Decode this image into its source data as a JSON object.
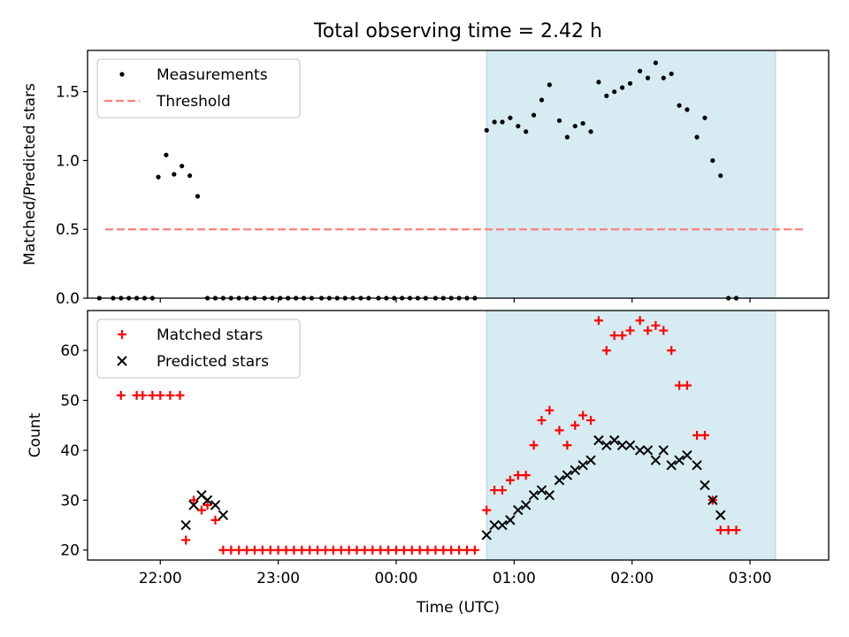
{
  "title": "Total observing time = 2.42 h",
  "colors": {
    "measurement": "#000000",
    "threshold": "#ff7f7f",
    "matched": "#ff0000",
    "predicted": "#000000",
    "span": "#add8e6"
  },
  "chart_data": [
    {
      "type": "scatter",
      "ylabel": "Matched/Predicted stars",
      "xlabel": "",
      "xlim": [
        "21:23",
        "03:40"
      ],
      "ylim": [
        0,
        1.8
      ],
      "xticks": [
        "22:00",
        "23:00",
        "00:00",
        "01:00",
        "02:00",
        "03:00"
      ],
      "yticks": [
        "0.0",
        "0.5",
        "1.0",
        "1.5"
      ],
      "highlight_span": [
        "00:46",
        "03:13"
      ],
      "legend": {
        "position": "top-left",
        "items": [
          {
            "label": "Measurements",
            "marker": "dot"
          },
          {
            "label": "Threshold",
            "marker": "dashed-line"
          }
        ]
      },
      "series": [
        {
          "name": "Measurements",
          "points": [
            [
              "21:29",
              0
            ],
            [
              "21:36",
              0
            ],
            [
              "21:40",
              0
            ],
            [
              "21:44",
              0
            ],
            [
              "21:48",
              0
            ],
            [
              "21:52",
              0
            ],
            [
              "21:56",
              0
            ],
            [
              "21:59",
              0.88
            ],
            [
              "22:03",
              1.04
            ],
            [
              "22:07",
              0.9
            ],
            [
              "22:11",
              0.96
            ],
            [
              "22:15",
              0.89
            ],
            [
              "22:19",
              0.74
            ],
            [
              "22:24",
              0
            ],
            [
              "22:28",
              0
            ],
            [
              "22:32",
              0
            ],
            [
              "22:36",
              0
            ],
            [
              "22:40",
              0
            ],
            [
              "22:44",
              0
            ],
            [
              "22:48",
              0
            ],
            [
              "22:53",
              0
            ],
            [
              "22:57",
              0
            ],
            [
              "23:01",
              0
            ],
            [
              "23:05",
              0
            ],
            [
              "23:09",
              0
            ],
            [
              "23:13",
              0
            ],
            [
              "23:17",
              0
            ],
            [
              "23:22",
              0
            ],
            [
              "23:26",
              0
            ],
            [
              "23:30",
              0
            ],
            [
              "23:34",
              0
            ],
            [
              "23:38",
              0
            ],
            [
              "23:42",
              0
            ],
            [
              "23:46",
              0
            ],
            [
              "23:51",
              0
            ],
            [
              "23:55",
              0
            ],
            [
              "23:59",
              0
            ],
            [
              "00:03",
              0
            ],
            [
              "00:07",
              0
            ],
            [
              "00:11",
              0
            ],
            [
              "00:15",
              0
            ],
            [
              "00:20",
              0
            ],
            [
              "00:24",
              0
            ],
            [
              "00:28",
              0
            ],
            [
              "00:32",
              0
            ],
            [
              "00:36",
              0
            ],
            [
              "00:40",
              0
            ],
            [
              "00:46",
              1.22
            ],
            [
              "00:50",
              1.28
            ],
            [
              "00:54",
              1.28
            ],
            [
              "00:58",
              1.31
            ],
            [
              "01:02",
              1.25
            ],
            [
              "01:06",
              1.21
            ],
            [
              "01:10",
              1.33
            ],
            [
              "01:14",
              1.44
            ],
            [
              "01:18",
              1.55
            ],
            [
              "01:23",
              1.29
            ],
            [
              "01:27",
              1.17
            ],
            [
              "01:31",
              1.25
            ],
            [
              "01:35",
              1.27
            ],
            [
              "01:39",
              1.21
            ],
            [
              "01:43",
              1.57
            ],
            [
              "01:47",
              1.47
            ],
            [
              "01:51",
              1.5
            ],
            [
              "01:55",
              1.53
            ],
            [
              "01:59",
              1.56
            ],
            [
              "02:04",
              1.65
            ],
            [
              "02:08",
              1.6
            ],
            [
              "02:12",
              1.71
            ],
            [
              "02:16",
              1.6
            ],
            [
              "02:20",
              1.63
            ],
            [
              "02:24",
              1.4
            ],
            [
              "02:28",
              1.37
            ],
            [
              "02:33",
              1.17
            ],
            [
              "02:37",
              1.31
            ],
            [
              "02:41",
              1.0
            ],
            [
              "02:45",
              0.89
            ],
            [
              "02:49",
              0
            ],
            [
              "02:53",
              0
            ]
          ]
        },
        {
          "name": "Threshold",
          "line": [
            [
              "21:32",
              0.5
            ],
            [
              "03:27",
              0.5
            ]
          ]
        }
      ]
    },
    {
      "type": "scatter",
      "ylabel": "Count",
      "xlabel": "Time (UTC)",
      "xlim": [
        "21:23",
        "03:40"
      ],
      "ylim": [
        18,
        68
      ],
      "xticks": [
        "22:00",
        "23:00",
        "00:00",
        "01:00",
        "02:00",
        "03:00"
      ],
      "yticks": [
        "20",
        "30",
        "40",
        "50",
        "60"
      ],
      "highlight_span": [
        "00:46",
        "03:13"
      ],
      "legend": {
        "position": "top-left",
        "items": [
          {
            "label": "Matched stars",
            "marker": "plus"
          },
          {
            "label": "Predicted stars",
            "marker": "x"
          }
        ]
      },
      "series": [
        {
          "name": "Matched stars",
          "points": [
            [
              "21:40",
              51
            ],
            [
              "21:48",
              51
            ],
            [
              "21:51",
              51
            ],
            [
              "21:56",
              51
            ],
            [
              "22:00",
              51
            ],
            [
              "22:05",
              51
            ],
            [
              "22:10",
              51
            ],
            [
              "22:13",
              22
            ],
            [
              "22:17",
              30
            ],
            [
              "22:21",
              28
            ],
            [
              "22:24",
              29
            ],
            [
              "22:28",
              26
            ],
            [
              "22:32",
              20
            ],
            [
              "22:36",
              20
            ],
            [
              "22:40",
              20
            ],
            [
              "22:44",
              20
            ],
            [
              "22:48",
              20
            ],
            [
              "22:52",
              20
            ],
            [
              "22:56",
              20
            ],
            [
              "23:00",
              20
            ],
            [
              "23:04",
              20
            ],
            [
              "23:08",
              20
            ],
            [
              "23:12",
              20
            ],
            [
              "23:16",
              20
            ],
            [
              "23:20",
              20
            ],
            [
              "23:24",
              20
            ],
            [
              "23:28",
              20
            ],
            [
              "23:32",
              20
            ],
            [
              "23:36",
              20
            ],
            [
              "23:40",
              20
            ],
            [
              "23:44",
              20
            ],
            [
              "23:48",
              20
            ],
            [
              "23:52",
              20
            ],
            [
              "23:56",
              20
            ],
            [
              "00:00",
              20
            ],
            [
              "00:04",
              20
            ],
            [
              "00:08",
              20
            ],
            [
              "00:12",
              20
            ],
            [
              "00:16",
              20
            ],
            [
              "00:20",
              20
            ],
            [
              "00:24",
              20
            ],
            [
              "00:28",
              20
            ],
            [
              "00:32",
              20
            ],
            [
              "00:36",
              20
            ],
            [
              "00:40",
              20
            ],
            [
              "00:46",
              28
            ],
            [
              "00:50",
              32
            ],
            [
              "00:54",
              32
            ],
            [
              "00:58",
              34
            ],
            [
              "01:02",
              35
            ],
            [
              "01:06",
              35
            ],
            [
              "01:10",
              41
            ],
            [
              "01:14",
              46
            ],
            [
              "01:18",
              48
            ],
            [
              "01:23",
              44
            ],
            [
              "01:27",
              41
            ],
            [
              "01:31",
              45
            ],
            [
              "01:35",
              47
            ],
            [
              "01:39",
              46
            ],
            [
              "01:43",
              66
            ],
            [
              "01:47",
              60
            ],
            [
              "01:51",
              63
            ],
            [
              "01:55",
              63
            ],
            [
              "01:59",
              64
            ],
            [
              "02:04",
              66
            ],
            [
              "02:08",
              64
            ],
            [
              "02:12",
              65
            ],
            [
              "02:16",
              64
            ],
            [
              "02:20",
              60
            ],
            [
              "02:24",
              53
            ],
            [
              "02:28",
              53
            ],
            [
              "02:33",
              43
            ],
            [
              "02:37",
              43
            ],
            [
              "02:41",
              30
            ],
            [
              "02:45",
              24
            ],
            [
              "02:49",
              24
            ],
            [
              "02:53",
              24
            ]
          ]
        },
        {
          "name": "Predicted stars",
          "points": [
            [
              "22:13",
              25
            ],
            [
              "22:17",
              29
            ],
            [
              "22:21",
              31
            ],
            [
              "22:24",
              30
            ],
            [
              "22:28",
              29
            ],
            [
              "22:32",
              27
            ],
            [
              "00:46",
              23
            ],
            [
              "00:50",
              25
            ],
            [
              "00:54",
              25
            ],
            [
              "00:58",
              26
            ],
            [
              "01:02",
              28
            ],
            [
              "01:06",
              29
            ],
            [
              "01:10",
              31
            ],
            [
              "01:14",
              32
            ],
            [
              "01:18",
              31
            ],
            [
              "01:23",
              34
            ],
            [
              "01:27",
              35
            ],
            [
              "01:31",
              36
            ],
            [
              "01:35",
              37
            ],
            [
              "01:39",
              38
            ],
            [
              "01:43",
              42
            ],
            [
              "01:47",
              41
            ],
            [
              "01:51",
              42
            ],
            [
              "01:55",
              41
            ],
            [
              "01:59",
              41
            ],
            [
              "02:04",
              40
            ],
            [
              "02:08",
              40
            ],
            [
              "02:12",
              38
            ],
            [
              "02:16",
              40
            ],
            [
              "02:20",
              37
            ],
            [
              "02:24",
              38
            ],
            [
              "02:28",
              39
            ],
            [
              "02:33",
              37
            ],
            [
              "02:37",
              33
            ],
            [
              "02:41",
              30
            ],
            [
              "02:45",
              27
            ]
          ]
        }
      ]
    }
  ]
}
